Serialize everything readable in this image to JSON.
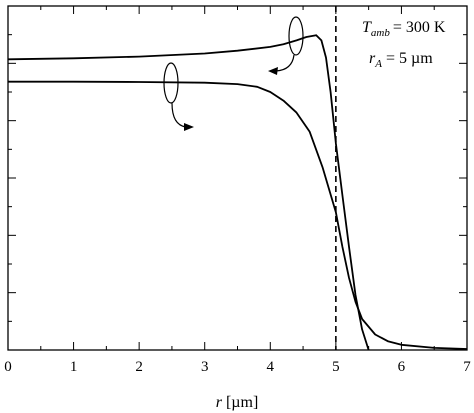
{
  "chart_data": {
    "type": "line",
    "title": "",
    "xlabel_var": "r",
    "xlabel_unit": "[µm]",
    "ylabel": "",
    "xlim": [
      0,
      7
    ],
    "x_ticks": [
      "0",
      "1",
      "2",
      "3",
      "4",
      "5",
      "6",
      "7"
    ],
    "grid": false,
    "legend": "none",
    "vertical_marker": {
      "x": 5,
      "style": "dashed"
    },
    "annotation": {
      "line1_var": "T",
      "line1_sub": "amb",
      "line1_value": "= 300 K",
      "line2_var": "r",
      "line2_sub": "A",
      "line2_value": "= 5 µm"
    },
    "series": [
      {
        "x": [
          0,
          1,
          2,
          3,
          3.5,
          4,
          4.2,
          4.4,
          4.55,
          4.7,
          4.78,
          4.85,
          4.92,
          5.0,
          5.1,
          5.2,
          5.3,
          5.4,
          5.5
        ],
        "y": [
          0.845,
          0.848,
          0.853,
          0.862,
          0.87,
          0.881,
          0.889,
          0.9,
          0.91,
          0.915,
          0.9,
          0.85,
          0.75,
          0.6,
          0.45,
          0.3,
          0.16,
          0.06,
          0.0
        ],
        "arrow": "right-axis"
      },
      {
        "x": [
          0,
          1,
          2,
          3,
          3.5,
          3.8,
          4.0,
          4.2,
          4.4,
          4.6,
          4.8,
          5.0,
          5.1,
          5.2,
          5.3,
          5.4,
          5.6,
          5.8,
          6.0,
          6.5,
          7.0
        ],
        "y": [
          0.78,
          0.78,
          0.779,
          0.777,
          0.773,
          0.765,
          0.75,
          0.725,
          0.69,
          0.635,
          0.53,
          0.4,
          0.3,
          0.21,
          0.14,
          0.09,
          0.045,
          0.025,
          0.015,
          0.006,
          0.003
        ],
        "arrow": "left-axis"
      }
    ],
    "colors": {
      "line": "#000000",
      "background": "#ffffff"
    }
  }
}
